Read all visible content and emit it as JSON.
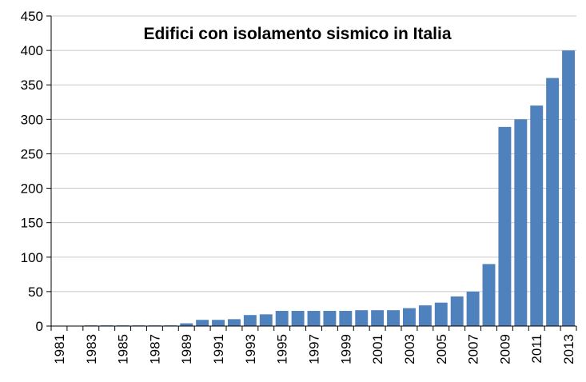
{
  "chart_data": {
    "type": "bar",
    "title": "Edifici con isolamento sismico in Italia",
    "xlabel": "",
    "ylabel": "",
    "categories": [
      "1981",
      "1982",
      "1983",
      "1984",
      "1985",
      "1986",
      "1987",
      "1988",
      "1989",
      "1990",
      "1991",
      "1992",
      "1993",
      "1994",
      "1995",
      "1996",
      "1997",
      "1998",
      "1999",
      "2000",
      "2001",
      "2002",
      "2003",
      "2004",
      "2005",
      "2006",
      "2007",
      "2008",
      "2009",
      "2010",
      "2011",
      "2012",
      "2013"
    ],
    "x_tick_labels": [
      "1981",
      "1983",
      "1985",
      "1987",
      "1989",
      "1991",
      "1993",
      "1995",
      "1997",
      "1999",
      "2001",
      "2003",
      "2005",
      "2007",
      "2009",
      "2011",
      "2013"
    ],
    "values": [
      0,
      0,
      1,
      1,
      1,
      1,
      1,
      1,
      4,
      9,
      9,
      10,
      16,
      17,
      22,
      22,
      22,
      22,
      22,
      23,
      23,
      23,
      26,
      30,
      34,
      43,
      50,
      90,
      289,
      300,
      320,
      360,
      400
    ],
    "ylim": [
      0,
      450
    ],
    "y_ticks": [
      0,
      50,
      100,
      150,
      200,
      250,
      300,
      350,
      400,
      450
    ],
    "grid": true,
    "legend": "none",
    "colors": {
      "bar": "#4F81BD",
      "grid": "#C8C8C8",
      "axis": "#000000"
    }
  }
}
